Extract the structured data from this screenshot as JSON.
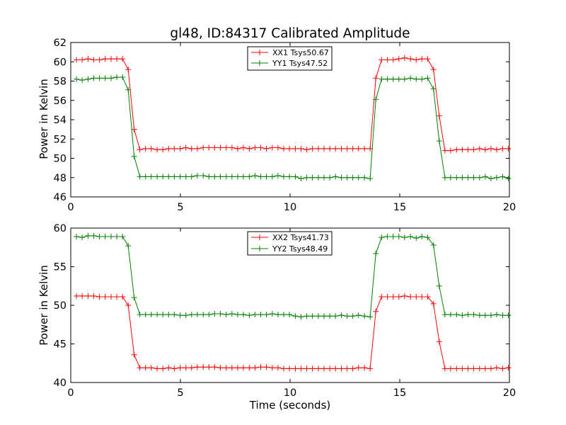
{
  "chart_data": [
    {
      "type": "line",
      "title": "gl48, ID:84317 Calibrated Amplitude",
      "xlabel": "",
      "ylabel": "Power in Kelvin",
      "xlim": [
        0,
        20
      ],
      "ylim": [
        46,
        62
      ],
      "xticks": [
        0,
        5,
        10,
        15,
        20
      ],
      "yticks": [
        46,
        48,
        50,
        52,
        54,
        56,
        58,
        60,
        62
      ],
      "grid": false,
      "legend_position": "top-center",
      "marker": "+",
      "x": [
        0.26,
        0.52,
        0.79,
        1.05,
        1.31,
        1.57,
        1.84,
        2.1,
        2.36,
        2.62,
        2.89,
        3.15,
        3.41,
        3.67,
        3.94,
        4.2,
        4.46,
        4.72,
        4.99,
        5.25,
        5.51,
        5.77,
        6.04,
        6.3,
        6.56,
        6.82,
        7.09,
        7.35,
        7.61,
        7.87,
        8.14,
        8.4,
        8.66,
        8.92,
        9.19,
        9.45,
        9.71,
        9.97,
        10.24,
        10.5,
        10.76,
        11.02,
        11.29,
        11.55,
        11.81,
        12.07,
        12.34,
        12.6,
        12.86,
        13.12,
        13.39,
        13.65,
        13.91,
        14.17,
        14.44,
        14.7,
        14.96,
        15.22,
        15.49,
        15.75,
        16.01,
        16.27,
        16.54,
        16.8,
        17.06,
        17.32,
        17.59,
        17.85,
        18.11,
        18.37,
        18.64,
        18.9,
        19.16,
        19.42,
        19.69,
        19.95
      ],
      "series": [
        {
          "name": "XX1 Tsys50.67",
          "color": "#ff0000",
          "values": [
            60.2,
            60.2,
            60.3,
            60.2,
            60.2,
            60.3,
            60.3,
            60.3,
            60.3,
            59.2,
            53.0,
            50.9,
            51.0,
            51.0,
            50.9,
            50.9,
            51.0,
            51.0,
            51.0,
            51.1,
            51.0,
            51.0,
            51.1,
            51.1,
            51.1,
            51.1,
            51.1,
            51.1,
            51.0,
            51.1,
            51.0,
            51.1,
            51.1,
            51.0,
            51.1,
            51.1,
            51.0,
            51.0,
            51.0,
            51.0,
            50.9,
            51.0,
            51.0,
            51.0,
            51.0,
            51.0,
            51.0,
            51.0,
            51.0,
            51.0,
            51.0,
            51.0,
            58.3,
            60.2,
            60.2,
            60.2,
            60.3,
            60.4,
            60.3,
            60.2,
            60.3,
            60.3,
            59.2,
            54.4,
            50.8,
            50.8,
            50.9,
            50.9,
            50.9,
            50.9,
            51.0,
            50.9,
            51.0,
            50.9,
            51.0,
            51.0
          ]
        },
        {
          "name": "YY1 Tsys47.52",
          "color": "#008000",
          "values": [
            58.2,
            58.1,
            58.2,
            58.3,
            58.3,
            58.3,
            58.3,
            58.4,
            58.4,
            57.1,
            50.2,
            48.1,
            48.1,
            48.1,
            48.1,
            48.1,
            48.1,
            48.1,
            48.1,
            48.1,
            48.1,
            48.2,
            48.2,
            48.1,
            48.1,
            48.1,
            48.1,
            48.1,
            48.1,
            48.1,
            48.1,
            48.2,
            48.1,
            48.1,
            48.1,
            48.2,
            48.1,
            48.1,
            48.1,
            47.9,
            48.0,
            48.0,
            48.0,
            48.0,
            48.0,
            48.1,
            48.0,
            48.0,
            48.0,
            48.0,
            48.0,
            47.9,
            56.1,
            58.2,
            58.2,
            58.2,
            58.2,
            58.2,
            58.3,
            58.2,
            58.2,
            58.3,
            57.2,
            51.8,
            48.0,
            48.0,
            48.0,
            48.0,
            48.0,
            48.0,
            48.0,
            48.1,
            47.9,
            48.0,
            48.1,
            47.9
          ]
        }
      ]
    },
    {
      "type": "line",
      "title": "",
      "xlabel": "Time (seconds)",
      "ylabel": "Power in Kelvin",
      "xlim": [
        0,
        20
      ],
      "ylim": [
        40,
        60
      ],
      "xticks": [
        0,
        5,
        10,
        15,
        20
      ],
      "yticks": [
        40,
        45,
        50,
        55,
        60
      ],
      "grid": false,
      "legend_position": "top-center",
      "marker": "+",
      "x": [
        0.26,
        0.52,
        0.79,
        1.05,
        1.31,
        1.57,
        1.84,
        2.1,
        2.36,
        2.62,
        2.89,
        3.15,
        3.41,
        3.67,
        3.94,
        4.2,
        4.46,
        4.72,
        4.99,
        5.25,
        5.51,
        5.77,
        6.04,
        6.3,
        6.56,
        6.82,
        7.09,
        7.35,
        7.61,
        7.87,
        8.14,
        8.4,
        8.66,
        8.92,
        9.19,
        9.45,
        9.71,
        9.97,
        10.24,
        10.5,
        10.76,
        11.02,
        11.29,
        11.55,
        11.81,
        12.07,
        12.34,
        12.6,
        12.86,
        13.12,
        13.39,
        13.65,
        13.91,
        14.17,
        14.44,
        14.7,
        14.96,
        15.22,
        15.49,
        15.75,
        16.01,
        16.27,
        16.54,
        16.8,
        17.06,
        17.32,
        17.59,
        17.85,
        18.11,
        18.37,
        18.64,
        18.9,
        19.16,
        19.42,
        19.69,
        19.95
      ],
      "series": [
        {
          "name": "XX2 Tsys41.73",
          "color": "#ff0000",
          "values": [
            51.2,
            51.2,
            51.2,
            51.2,
            51.1,
            51.1,
            51.1,
            51.1,
            51.1,
            50.0,
            43.6,
            41.9,
            41.9,
            41.9,
            41.8,
            41.8,
            41.9,
            41.8,
            41.9,
            41.9,
            41.9,
            42.0,
            42.0,
            42.0,
            42.0,
            41.9,
            41.9,
            41.9,
            41.9,
            41.9,
            41.9,
            41.9,
            42.0,
            42.0,
            41.9,
            41.9,
            41.8,
            41.8,
            41.8,
            41.8,
            41.8,
            41.8,
            41.8,
            41.8,
            41.8,
            41.8,
            41.8,
            41.8,
            41.8,
            41.9,
            41.9,
            41.8,
            49.2,
            51.1,
            51.1,
            51.1,
            51.1,
            51.2,
            51.1,
            51.1,
            51.1,
            51.1,
            50.2,
            45.3,
            41.8,
            41.8,
            41.8,
            41.8,
            41.8,
            41.8,
            41.8,
            41.8,
            41.8,
            41.9,
            41.8,
            41.9
          ]
        },
        {
          "name": "YY2 Tsys48.49",
          "color": "#008000",
          "values": [
            58.9,
            58.8,
            59.0,
            59.0,
            58.9,
            58.9,
            58.9,
            58.9,
            58.9,
            57.7,
            51.0,
            48.8,
            48.8,
            48.8,
            48.8,
            48.8,
            48.8,
            48.8,
            48.7,
            48.7,
            48.8,
            48.8,
            48.8,
            48.8,
            48.9,
            48.9,
            48.8,
            48.9,
            48.8,
            48.8,
            48.7,
            48.8,
            48.8,
            48.8,
            48.9,
            48.8,
            48.8,
            48.8,
            48.6,
            48.5,
            48.6,
            48.6,
            48.6,
            48.6,
            48.6,
            48.6,
            48.7,
            48.6,
            48.6,
            48.7,
            48.6,
            48.5,
            56.7,
            58.8,
            58.9,
            58.9,
            58.9,
            58.8,
            58.9,
            58.7,
            58.9,
            58.8,
            57.8,
            52.5,
            48.8,
            48.8,
            48.8,
            48.7,
            48.8,
            48.8,
            48.7,
            48.7,
            48.7,
            48.8,
            48.7,
            48.7
          ]
        }
      ]
    }
  ]
}
